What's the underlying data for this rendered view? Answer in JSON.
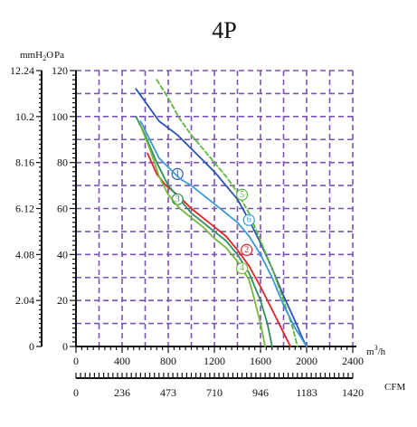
{
  "chart_data": {
    "type": "line",
    "title": "4P",
    "y_units": [
      "mmH2O",
      "Pa"
    ],
    "x_units": [
      "m3/h",
      "CFM"
    ],
    "y_pa_ticks": [
      "0",
      "20",
      "40",
      "60",
      "80",
      "100",
      "120"
    ],
    "y_mm_ticks": [
      "0",
      "2.04",
      "4.08",
      "6.12",
      "8.16",
      "10.2",
      "12.24"
    ],
    "x_m3h_ticks": [
      "0",
      "400",
      "800",
      "1200",
      "1600",
      "2000",
      "2400"
    ],
    "x_cfm_ticks": [
      "0",
      "236",
      "473",
      "710",
      "946",
      "1183",
      "1420"
    ],
    "xlim": [
      0,
      2400
    ],
    "ylim": [
      0,
      120
    ],
    "grid": true,
    "series": [
      {
        "marker": "1",
        "color": "#2d52b5",
        "dash": false,
        "marker_at": [
          880,
          75
        ],
        "points": [
          [
            520,
            112
          ],
          [
            620,
            105
          ],
          [
            720,
            98
          ],
          [
            880,
            92
          ],
          [
            1000,
            86
          ],
          [
            1200,
            76
          ],
          [
            1400,
            64
          ],
          [
            1500,
            55
          ],
          [
            1600,
            45
          ],
          [
            1700,
            34
          ],
          [
            1800,
            22
          ],
          [
            1900,
            11
          ],
          [
            1960,
            4
          ],
          [
            2000,
            0
          ]
        ]
      },
      {
        "marker": "2",
        "color": "#e02424",
        "dash": false,
        "marker_at": [
          1480,
          42
        ],
        "points": [
          [
            620,
            84
          ],
          [
            700,
            75
          ],
          [
            780,
            70
          ],
          [
            880,
            66
          ],
          [
            1000,
            60
          ],
          [
            1100,
            56
          ],
          [
            1200,
            52
          ],
          [
            1300,
            48
          ],
          [
            1400,
            42
          ],
          [
            1500,
            35
          ],
          [
            1600,
            26
          ],
          [
            1700,
            16
          ],
          [
            1800,
            6
          ],
          [
            1860,
            0
          ]
        ]
      },
      {
        "marker": "3",
        "color": "#2f8f5a",
        "dash": false,
        "marker_at": [
          880,
          64
        ],
        "points": [
          [
            520,
            100
          ],
          [
            600,
            92
          ],
          [
            700,
            80
          ],
          [
            800,
            70
          ],
          [
            900,
            64
          ],
          [
            1000,
            58
          ],
          [
            1100,
            54
          ],
          [
            1200,
            50
          ],
          [
            1300,
            46
          ],
          [
            1400,
            40
          ],
          [
            1500,
            32
          ],
          [
            1600,
            20
          ],
          [
            1660,
            10
          ],
          [
            1700,
            0
          ]
        ]
      },
      {
        "marker": "4",
        "color": "#74b83e",
        "dash": false,
        "marker_at": [
          1440,
          34
        ],
        "points": [
          [
            560,
            96
          ],
          [
            640,
            86
          ],
          [
            720,
            74
          ],
          [
            800,
            66
          ],
          [
            900,
            60
          ],
          [
            1000,
            56
          ],
          [
            1100,
            52
          ],
          [
            1200,
            47
          ],
          [
            1300,
            43
          ],
          [
            1400,
            37
          ],
          [
            1500,
            29
          ],
          [
            1550,
            20
          ],
          [
            1600,
            10
          ],
          [
            1640,
            0
          ]
        ]
      },
      {
        "marker": "5",
        "color": "#5cb83e",
        "dash": true,
        "marker_at": [
          1440,
          66
        ],
        "points": [
          [
            700,
            116
          ],
          [
            800,
            108
          ],
          [
            900,
            99
          ],
          [
            1000,
            92
          ],
          [
            1100,
            86
          ],
          [
            1200,
            80
          ],
          [
            1300,
            74
          ],
          [
            1400,
            67
          ],
          [
            1500,
            58
          ],
          [
            1600,
            46
          ],
          [
            1700,
            34
          ],
          [
            1800,
            20
          ],
          [
            1880,
            8
          ],
          [
            1920,
            0
          ]
        ]
      },
      {
        "marker": "6",
        "color": "#3a9ad8",
        "dash": false,
        "marker_at": [
          1500,
          55
        ],
        "points": [
          [
            560,
            98
          ],
          [
            640,
            90
          ],
          [
            720,
            82
          ],
          [
            800,
            78
          ],
          [
            900,
            73
          ],
          [
            1000,
            70
          ],
          [
            1100,
            66
          ],
          [
            1200,
            62
          ],
          [
            1300,
            58
          ],
          [
            1400,
            54
          ],
          [
            1500,
            48
          ],
          [
            1600,
            40
          ],
          [
            1700,
            30
          ],
          [
            1800,
            18
          ],
          [
            1900,
            8
          ],
          [
            2000,
            0
          ]
        ]
      }
    ]
  }
}
